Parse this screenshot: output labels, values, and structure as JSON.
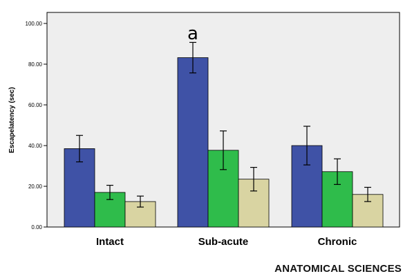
{
  "chart_data": {
    "type": "bar",
    "title": "",
    "xlabel": "",
    "ylabel": "Escapelatency (sec)",
    "ylim": [
      0,
      100
    ],
    "yticks": [
      "0.00",
      "20.00",
      "40.00",
      "60.00",
      "80.00",
      "100.00"
    ],
    "categories": [
      "Intact",
      "Sub-acute",
      "Chronic"
    ],
    "grid": false,
    "legend": "none",
    "series": [
      {
        "color": "#3f52a6",
        "values": [
          38.5,
          83.2,
          40.0
        ],
        "errors": [
          6.5,
          7.5,
          9.5
        ]
      },
      {
        "color": "#2fbc4b",
        "values": [
          17.0,
          37.7,
          27.2
        ],
        "errors": [
          3.5,
          9.5,
          6.3
        ]
      },
      {
        "color": "#d9d4a2",
        "values": [
          12.5,
          23.5,
          16.0
        ],
        "errors": [
          2.7,
          5.8,
          3.5
        ]
      }
    ],
    "annotations": [
      {
        "text": "a",
        "category": "Sub-acute"
      }
    ],
    "plot_background": "#eeeeee"
  },
  "footer": {
    "journal": "ANATOMICAL SCIENCES"
  }
}
